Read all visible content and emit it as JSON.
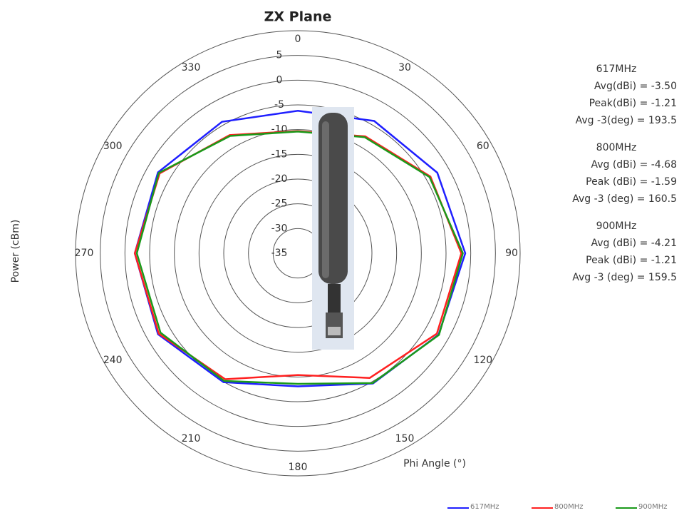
{
  "chart_data": {
    "type": "polar",
    "title": "ZX Plane",
    "r_label": "Power (cBm)",
    "theta_label": "Phi Angle (°)",
    "rlim": [
      -35,
      10
    ],
    "rticks": [
      5,
      0,
      -5,
      -10,
      -15,
      -20,
      -25,
      -30,
      -35
    ],
    "thetaticks": [
      0,
      30,
      60,
      90,
      120,
      150,
      180,
      210,
      240,
      270,
      300,
      330
    ],
    "theta": [
      0,
      30,
      60,
      90,
      120,
      150,
      180,
      210,
      240,
      270,
      300,
      330
    ],
    "series": [
      {
        "name": "617MHz",
        "color": "#1f1fff",
        "values": [
          -6.2,
          -4.1,
          -2.4,
          -1.1,
          -2.1,
          -4.6,
          -8.1,
          -4.9,
          -2.3,
          -2.0,
          -2.3,
          -4.3
        ]
      },
      {
        "name": "800MHz",
        "color": "#ff2020",
        "values": [
          -10.3,
          -7.7,
          -4.0,
          -1.9,
          -2.5,
          -5.9,
          -10.4,
          -5.6,
          -2.5,
          -2.0,
          -2.7,
          -7.4
        ]
      },
      {
        "name": "900MHz",
        "color": "#1a9a1a",
        "values": [
          -10.4,
          -7.9,
          -4.2,
          -1.6,
          -2.0,
          -4.7,
          -8.6,
          -5.2,
          -2.9,
          -2.4,
          -2.5,
          -7.6
        ]
      }
    ],
    "annotations": [
      {
        "title": "617MHz",
        "lines": [
          "Avg(dBi) = -3.50",
          "Peak(dBi) = -1.21",
          "Avg -3(deg) = 193.5"
        ]
      },
      {
        "title": "800MHz",
        "lines": [
          "Avg (dBi) =  -4.68",
          "Peak (dBi) =  -1.59",
          "Avg -3 (deg) =  160.5"
        ]
      },
      {
        "title": "900MHz",
        "lines": [
          "Avg (dBi) = -4.21",
          "Peak (dBi) = -1.21",
          "Avg -3 (deg) = 159.5"
        ]
      }
    ]
  }
}
